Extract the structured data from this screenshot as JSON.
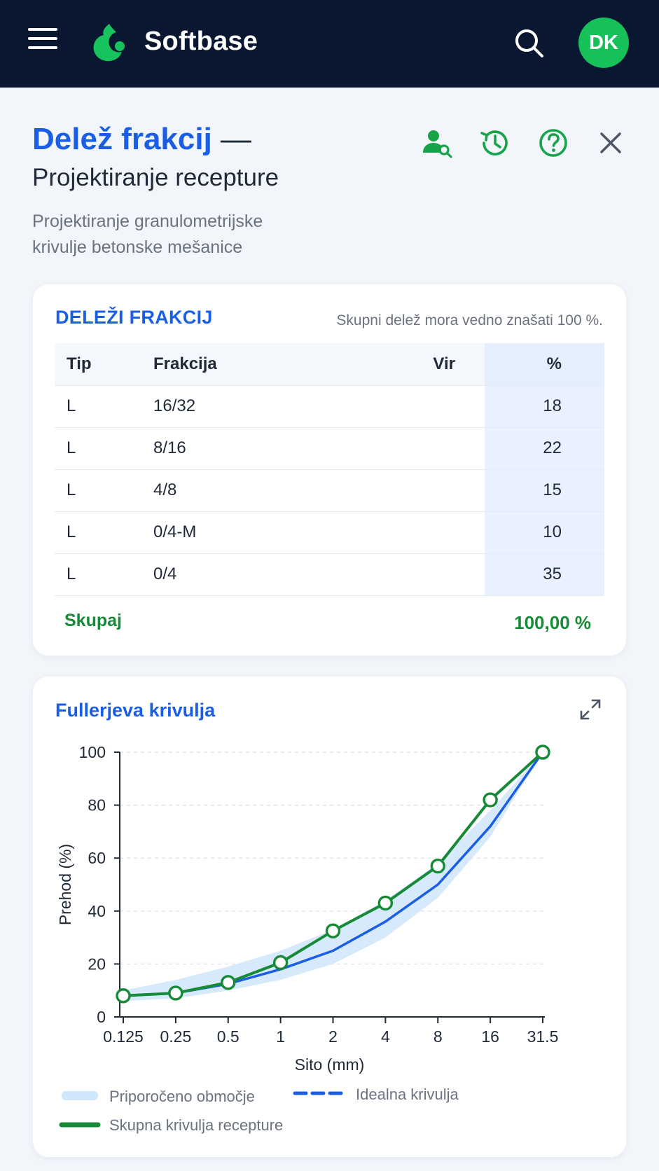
{
  "app": {
    "brand": "Softbase",
    "avatar_initials": "DK",
    "icons": {
      "menu": "hamburger-menu-icon",
      "logo": "softbase-logo",
      "search": "search-icon",
      "user_search": "user-search-icon",
      "history": "history-icon",
      "help": "help-icon",
      "close": "close-icon",
      "expand": "expand-icon"
    },
    "colors": {
      "topbar": "#0a1730",
      "accent_blue": "#1b5ee6",
      "accent_green": "#178a37",
      "avatar_green": "#16c15a",
      "band_blue": "#cfe6fb"
    }
  },
  "header": {
    "title": "Delež frakcij",
    "title_separator": "—",
    "subtitle": "Projektiranje recepture",
    "description": "Projektiranje granulometrijske krivulje betonske mešanice"
  },
  "fractions": {
    "title": "DELEŽI FRAKCIJ",
    "note": "Skupni delež mora vedno znašati 100 %.",
    "columns": [
      "Tip",
      "Frakcija",
      "Vir",
      "%"
    ],
    "rows": [
      {
        "tip": "L",
        "frakcija": "16/32",
        "vir": "",
        "pct": "18"
      },
      {
        "tip": "L",
        "frakcija": "8/16",
        "vir": "",
        "pct": "22"
      },
      {
        "tip": "L",
        "frakcija": "4/8",
        "vir": "",
        "pct": "15"
      },
      {
        "tip": "L",
        "frakcija": "0/4-M",
        "vir": "",
        "pct": "10"
      },
      {
        "tip": "L",
        "frakcija": "0/4",
        "vir": "",
        "pct": "35"
      }
    ],
    "total_label": "Skupaj",
    "total_value": "100,00 %"
  },
  "chart_card": {
    "title": "Fullerjeva krivulja"
  },
  "chart_data": {
    "type": "line",
    "title": "Fullerjeva krivulja",
    "xlabel": "Sito (mm)",
    "ylabel": "Prehod (%)",
    "categories": [
      "0.125",
      "0.25",
      "0.5",
      "1",
      "2",
      "4",
      "8",
      "16",
      "31.5"
    ],
    "ylim": [
      0,
      100
    ],
    "yticks": [
      0,
      20,
      40,
      60,
      80,
      100
    ],
    "grid": "horizontal dashed",
    "legend_position": "bottom",
    "band": {
      "name": "Priporočeno območje",
      "upper": [
        10,
        14,
        19,
        25,
        33,
        44,
        58,
        78,
        100
      ],
      "lower": [
        6,
        7,
        10,
        14,
        20,
        30,
        45,
        68,
        100
      ]
    },
    "series": [
      {
        "name": "Idealna krivulja",
        "values": [
          8,
          9,
          12.5,
          18,
          25,
          36,
          50,
          72,
          100
        ],
        "color": "#1b5ee6"
      },
      {
        "name": "Skupna krivulja recepture",
        "values": [
          8,
          9,
          13,
          20.5,
          32.5,
          43,
          57,
          82,
          100
        ],
        "color": "#178a37"
      }
    ]
  }
}
